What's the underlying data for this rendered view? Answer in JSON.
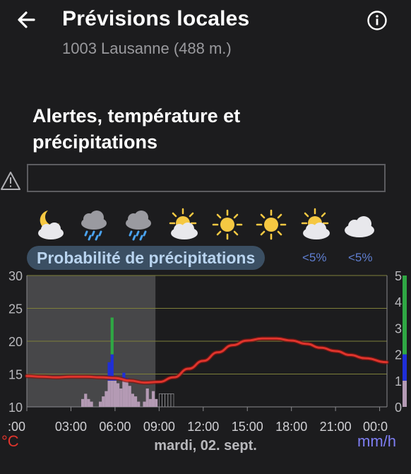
{
  "header": {
    "title": "Prévisions locales",
    "subtitle": "1003 Lausanne (488 m.)",
    "back_icon": "arrow-left-icon",
    "info_icon": "info-icon"
  },
  "section": {
    "title": "Alertes, température et précipitations"
  },
  "alerts": {
    "warning_icon": "warning-triangle-icon",
    "text": ""
  },
  "weather_icons": [
    "moon-cloud-icon",
    "cloud-rain-icon",
    "cloud-rain-icon",
    "sun-cloud-icon",
    "sun-icon",
    "sun-icon",
    "sun-cloud-icon",
    "cloud-icon"
  ],
  "precipitation": {
    "label": "Probabilité de précipitations",
    "probabilities": [
      "<5%",
      "<5%"
    ]
  },
  "footer": {
    "date": "mardi, 02. sept.",
    "unit_left": "°C",
    "unit_right": "mm/h"
  },
  "colors": {
    "temperature": "#e0342c",
    "past_shade": "#555558",
    "rain_light": "#b49ab4",
    "rain_medium": "#1f2fd8",
    "rain_heavy": "#2fa844",
    "gridline": "#7e7f3a"
  },
  "chart_data": {
    "type": "line",
    "x_ticks": [
      ":00",
      "03:00",
      "06:00",
      "09:00",
      "12:00",
      "15:00",
      "18:00",
      "21:00",
      "00:0"
    ],
    "x_hours": [
      0,
      3,
      6,
      9,
      12,
      15,
      18,
      21,
      24
    ],
    "xlim": [
      0,
      24.5
    ],
    "y_left": {
      "label": "°C",
      "lim": [
        10,
        30
      ],
      "ticks": [
        10,
        15,
        20,
        25,
        30
      ]
    },
    "y_right": {
      "label": "mm/h",
      "lim": [
        0,
        5
      ],
      "ticks": [
        0,
        1,
        2,
        3,
        4,
        5
      ]
    },
    "past_until_hour": 8.75,
    "temperature": {
      "x": [
        0,
        1,
        2,
        3,
        4,
        5,
        6,
        7,
        8,
        9,
        10,
        11,
        12,
        13,
        14,
        15,
        16,
        17,
        18,
        19,
        20,
        21,
        22,
        23,
        24.5
      ],
      "y": [
        14.7,
        14.6,
        14.5,
        14.6,
        14.6,
        14.5,
        14.4,
        14.0,
        13.7,
        13.8,
        14.5,
        15.8,
        17.0,
        18.3,
        19.4,
        20.1,
        20.4,
        20.4,
        20.1,
        19.6,
        19.0,
        18.5,
        17.9,
        17.4,
        16.8
      ]
    },
    "precipitation_mmh": {
      "x": [
        3.8,
        4.0,
        4.2,
        4.4,
        5.0,
        5.2,
        5.4,
        5.6,
        5.8,
        6.0,
        6.2,
        6.4,
        6.6,
        6.8,
        7.0,
        7.2,
        7.4,
        7.6,
        8.0,
        8.2,
        8.4,
        8.6,
        8.8
      ],
      "y": [
        0.3,
        0.5,
        0.3,
        0.2,
        0.2,
        0.4,
        0.6,
        1.7,
        3.4,
        1.1,
        0.9,
        0.7,
        1.3,
        1.1,
        0.8,
        0.5,
        0.4,
        0.2,
        0.2,
        0.7,
        0.3,
        0.6,
        0.3
      ]
    },
    "forecast_precip": {
      "x": [
        9.0,
        9.2,
        9.4,
        9.6,
        9.8
      ],
      "y": [
        0.5,
        0.5,
        0.5,
        0.5,
        0.5
      ]
    },
    "right_scale_colors": [
      {
        "from": 0,
        "to": 1,
        "color": "#b49ab4"
      },
      {
        "from": 1,
        "to": 2,
        "color": "#1f2fd8"
      },
      {
        "from": 2,
        "to": 5,
        "color": "#2fa844"
      }
    ]
  }
}
